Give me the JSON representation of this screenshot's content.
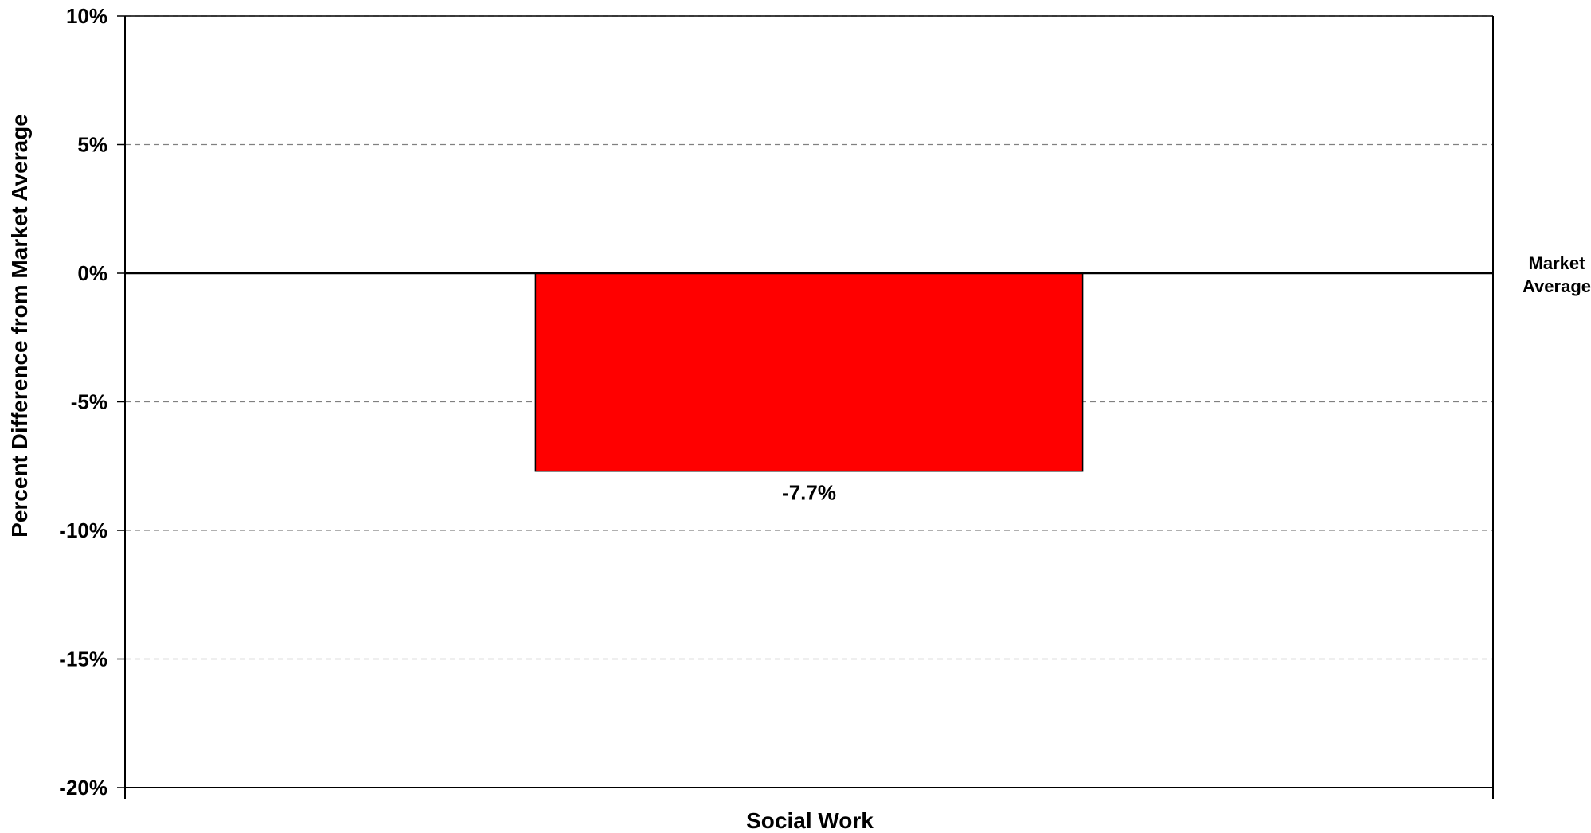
{
  "chart_data": {
    "type": "bar",
    "categories": [
      "Social Work"
    ],
    "values": [
      -7.7
    ],
    "value_labels": [
      "-7.7%"
    ],
    "ylabel": "Percent Difference from Market Average",
    "ylim": [
      -20,
      10
    ],
    "yticks": [
      10,
      5,
      0,
      -5,
      -10,
      -15,
      -20
    ],
    "ytick_labels": [
      "10%",
      "5%",
      "0%",
      "-5%",
      "-10%",
      "-15%",
      "-20%"
    ],
    "grid": "horizontal-dashed",
    "reference_line": {
      "value": 0,
      "label_line1": "Market",
      "label_line2": "Average"
    },
    "bar_color": "#ff0000"
  }
}
